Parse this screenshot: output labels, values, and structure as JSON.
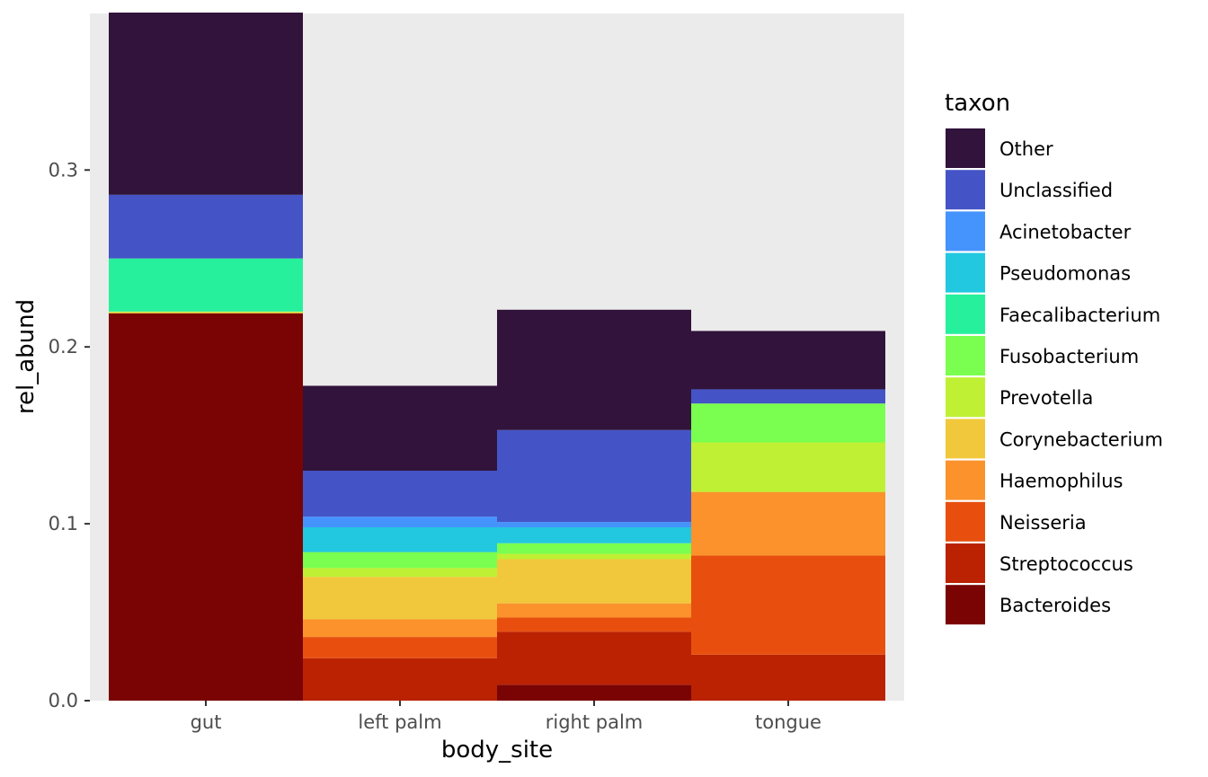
{
  "chart_data": {
    "type": "bar",
    "stacked": true,
    "xlabel": "body_site",
    "ylabel": "rel_abund",
    "categories": [
      "gut",
      "left palm",
      "right palm",
      "tongue"
    ],
    "ylim": [
      0,
      0.3885
    ],
    "yticks": [
      0.0,
      0.1,
      0.2,
      0.3
    ],
    "ytick_labels": [
      "0.0",
      "0.1",
      "0.2",
      "0.3"
    ],
    "grid": false,
    "panel_background": "#ebebeb",
    "legend": {
      "title": "taxon",
      "placement": "right"
    },
    "series": [
      {
        "name": "Bacteroides",
        "color": "#7a0403",
        "values": [
          0.219,
          0.0,
          0.009,
          0.0
        ]
      },
      {
        "name": "Streptococcus",
        "color": "#bb2202",
        "values": [
          0.0,
          0.024,
          0.03,
          0.026
        ]
      },
      {
        "name": "Neisseria",
        "color": "#e84f0f",
        "values": [
          0.0,
          0.012,
          0.008,
          0.056
        ]
      },
      {
        "name": "Haemophilus",
        "color": "#fb922c",
        "values": [
          0.0,
          0.01,
          0.008,
          0.036
        ]
      },
      {
        "name": "Corynebacterium",
        "color": "#f1c83b",
        "values": [
          0.0005,
          0.024,
          0.025,
          0.0
        ]
      },
      {
        "name": "Prevotella",
        "color": "#c0f033",
        "values": [
          0.0005,
          0.005,
          0.003,
          0.028
        ]
      },
      {
        "name": "Fusobacterium",
        "color": "#7afe4f",
        "values": [
          0.0,
          0.009,
          0.006,
          0.022
        ]
      },
      {
        "name": "Faecalibacterium",
        "color": "#27f09c",
        "values": [
          0.03,
          0.0,
          0.0,
          0.0
        ]
      },
      {
        "name": "Pseudomonas",
        "color": "#21c8e0",
        "values": [
          0.0,
          0.014,
          0.009,
          0.0
        ]
      },
      {
        "name": "Acinetobacter",
        "color": "#4593fd",
        "values": [
          0.0,
          0.006,
          0.003,
          0.0
        ]
      },
      {
        "name": "Unclassified",
        "color": "#4454c6",
        "values": [
          0.036,
          0.026,
          0.052,
          0.008
        ]
      },
      {
        "name": "Other",
        "color": "#31133b",
        "values": [
          0.103,
          0.048,
          0.068,
          0.033
        ]
      }
    ]
  }
}
